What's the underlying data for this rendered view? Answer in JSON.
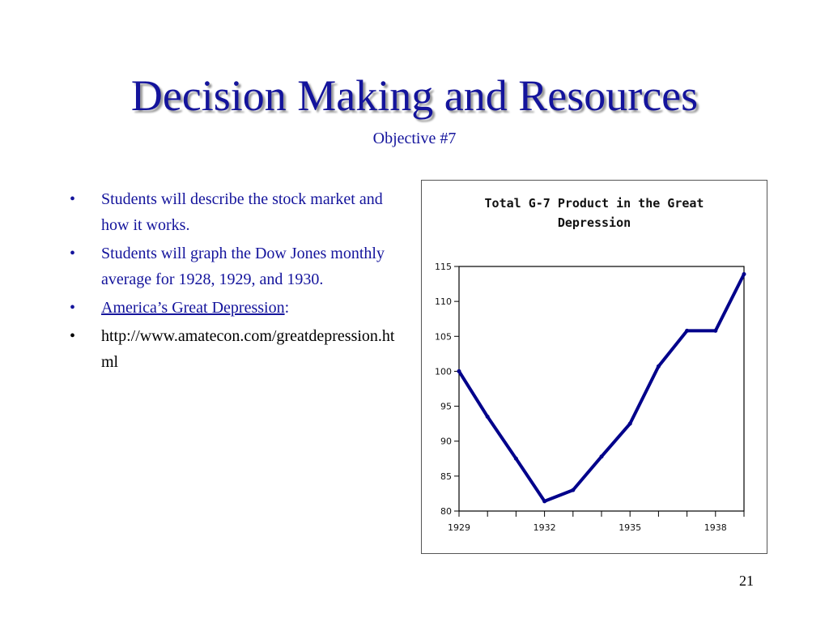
{
  "slide": {
    "title": "Decision Making and Resources",
    "subtitle": "Objective #7",
    "page_number": "21"
  },
  "bullets": [
    {
      "text": "Students will describe the stock market and how it works."
    },
    {
      "text": "Students will graph the Dow Jones monthly average for 1928, 1929, and 1930."
    },
    {
      "link_text": "America’s Great Depression",
      "suffix": ":"
    },
    {
      "text": "http://www.amatecon.com/greatdepression.html"
    }
  ],
  "bullet_symbol": "•",
  "colors": {
    "title": "#14149c",
    "line": "#00008b"
  },
  "chart_data": {
    "type": "line",
    "title": "Total G-7 Product in the Great Depression",
    "title_lines": [
      "Total G-7 Product in the Great",
      "Depression"
    ],
    "xlabel": "",
    "ylabel": "",
    "x": [
      1929,
      1930,
      1931,
      1932,
      1933,
      1934,
      1935,
      1936,
      1937,
      1938,
      1939
    ],
    "y": [
      100,
      93.5,
      87.5,
      81.4,
      83.0,
      87.8,
      92.5,
      100.7,
      105.8,
      105.8,
      113.9
    ],
    "xlim": [
      1929,
      1939
    ],
    "ylim": [
      80,
      115
    ],
    "x_tick_labels": [
      "1929",
      "1932",
      "1935",
      "1938"
    ],
    "x_tick_label_values": [
      1929,
      1932,
      1935,
      1938
    ],
    "y_ticks": [
      80,
      85,
      90,
      95,
      100,
      105,
      110,
      115
    ],
    "grid": false
  }
}
